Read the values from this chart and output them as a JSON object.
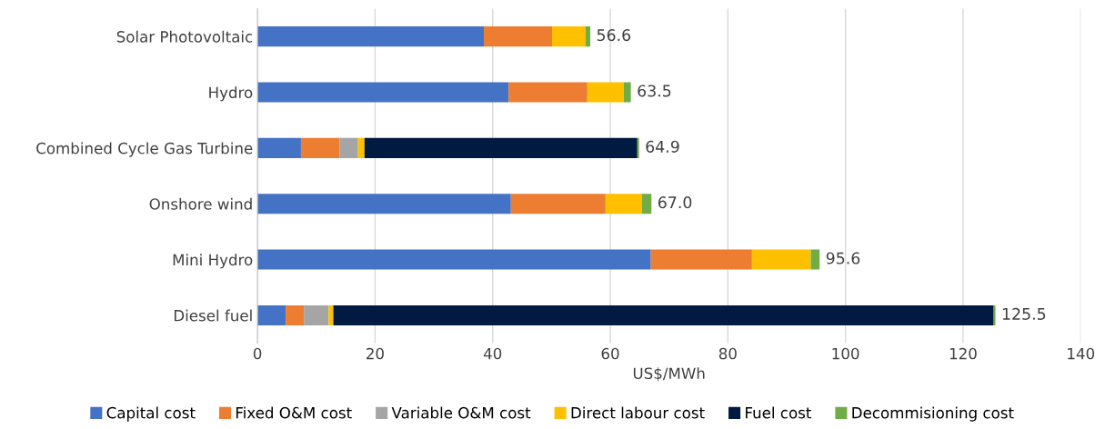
{
  "chart_data": {
    "type": "bar",
    "orientation": "horizontal",
    "stacked": true,
    "xlabel": "US$/MWh",
    "categories": [
      "Solar Photovoltaic",
      "Hydro",
      "Combined Cycle Gas Turbine",
      "Onshore wind",
      "Mini Hydro",
      "Diesel fuel"
    ],
    "series": [
      {
        "name": "Capital cost",
        "color": "#4472c4",
        "values": [
          38.5,
          42.7,
          7.4,
          43.1,
          66.9,
          4.8
        ]
      },
      {
        "name": "Fixed O&M cost",
        "color": "#ed7d31",
        "values": [
          11.6,
          13.4,
          6.6,
          16.1,
          17.2,
          3.1
        ]
      },
      {
        "name": "Variable O&M cost",
        "color": "#a5a5a5",
        "values": [
          null,
          null,
          3.1,
          null,
          null,
          4.2
        ]
      },
      {
        "name": "Direct labour cost",
        "color": "#ffc000",
        "values": [
          5.7,
          6.2,
          1.1,
          6.2,
          10.0,
          0.8
        ]
      },
      {
        "name": "Fuel cost",
        "color": "#001a41",
        "values": [
          null,
          null,
          46.4,
          null,
          null,
          112.3
        ]
      },
      {
        "name": "Decommisioning cost",
        "color": "#70ad47",
        "values": [
          0.8,
          1.2,
          0.3,
          1.6,
          1.5,
          0.3
        ]
      }
    ],
    "totals": [
      "56.6",
      "63.5",
      "64.9",
      "67.0",
      "95.6",
      "125.5"
    ],
    "xlim": [
      0,
      140
    ],
    "xticks": [
      0,
      20,
      40,
      60,
      80,
      100,
      120,
      140
    ],
    "grid": "x",
    "legend": "bottom"
  }
}
